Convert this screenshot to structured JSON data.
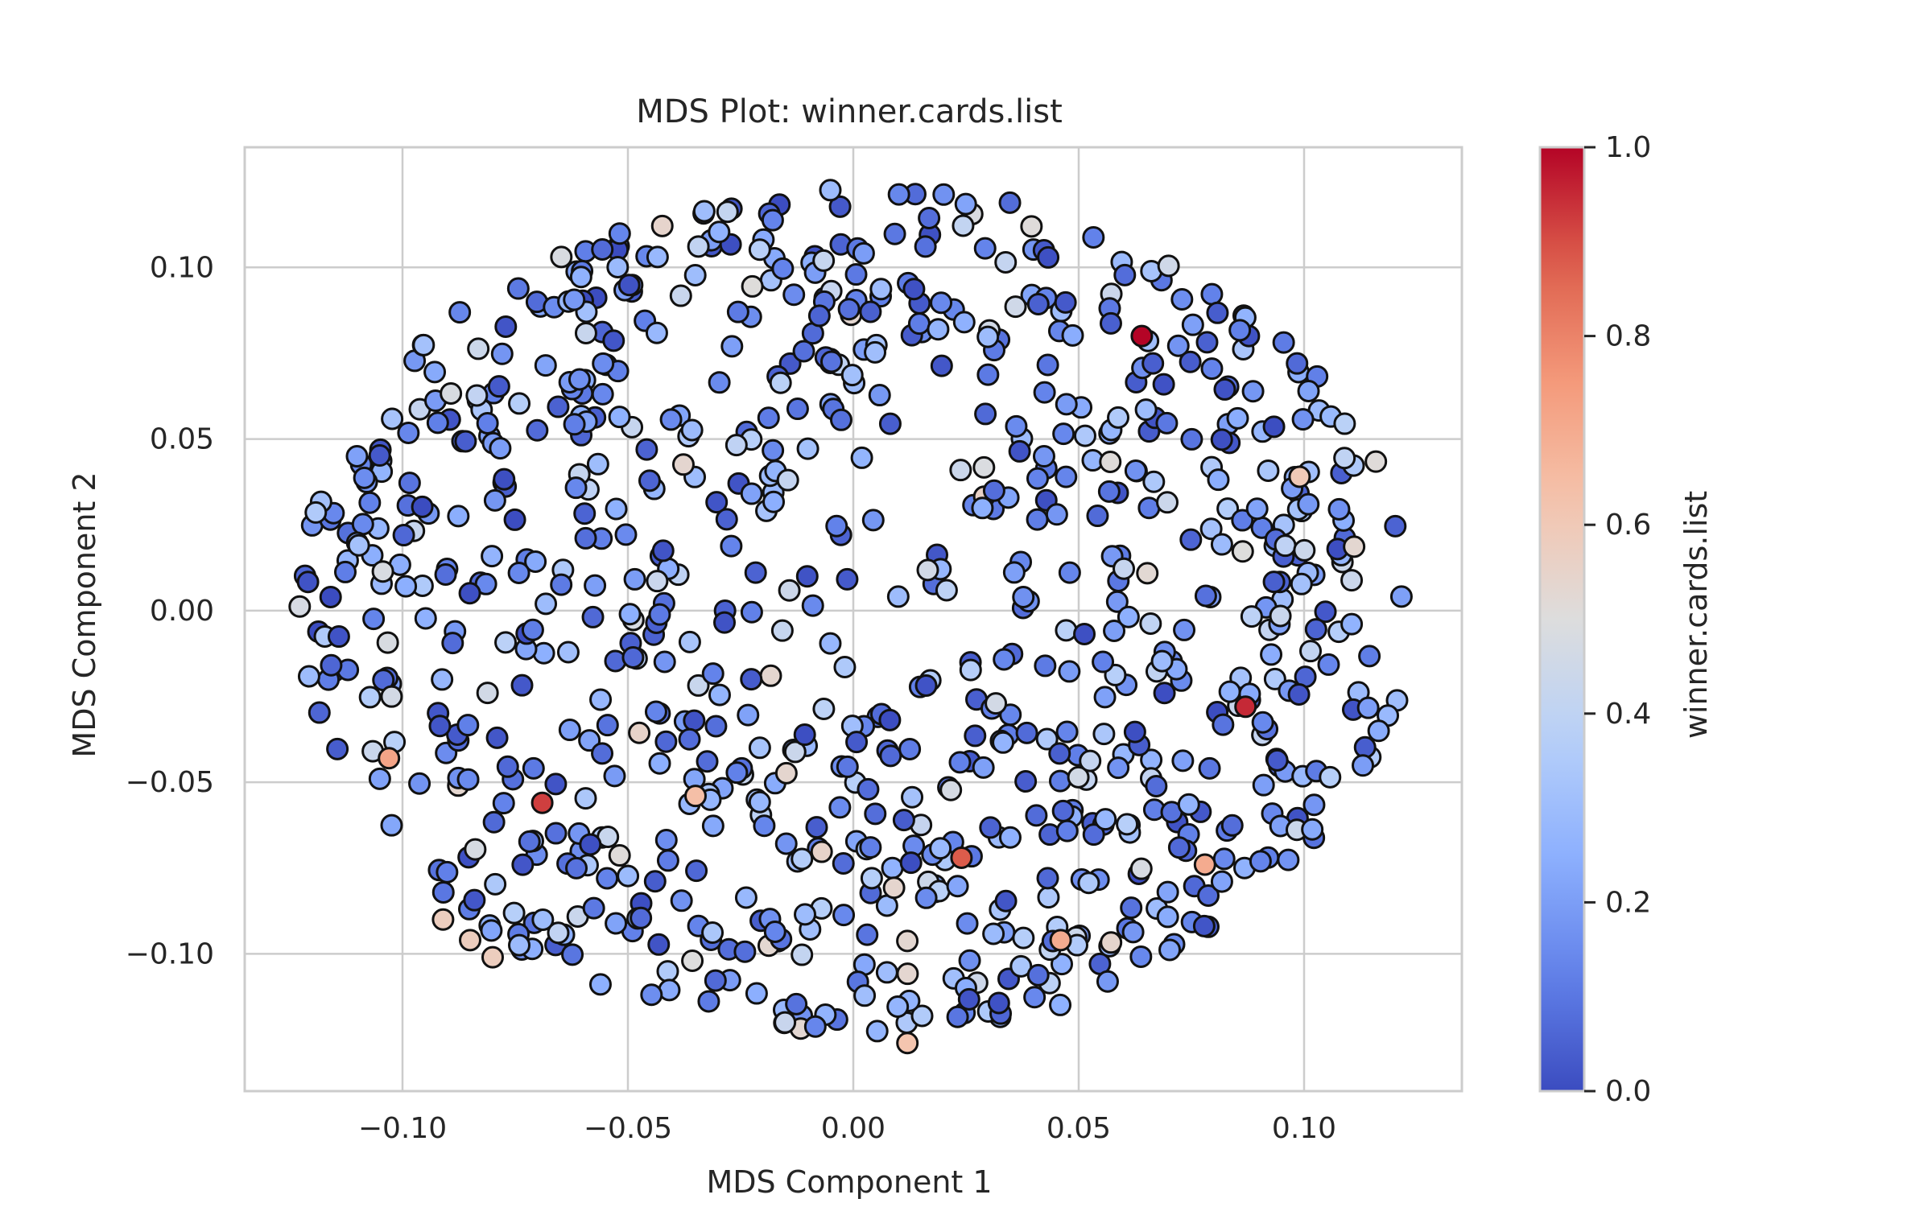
{
  "chart_data": {
    "type": "scatter",
    "title": "MDS Plot: winner.cards.list",
    "xlabel": "MDS Component 1",
    "ylabel": "MDS Component 2",
    "xlim": [
      -0.135,
      0.135
    ],
    "ylim": [
      -0.14,
      0.135
    ],
    "xticks": [
      -0.1,
      -0.05,
      0.0,
      0.05,
      0.1
    ],
    "xtick_labels": [
      "−0.10",
      "−0.05",
      "0.00",
      "0.05",
      "0.10"
    ],
    "yticks": [
      -0.1,
      -0.05,
      0.0,
      0.05,
      0.1
    ],
    "ytick_labels": [
      "−0.10",
      "−0.05",
      "0.00",
      "0.05",
      "0.10"
    ],
    "grid": true,
    "colormap": "coolwarm",
    "colorbar": {
      "label": "winner.cards.list",
      "range": [
        0.0,
        1.0
      ],
      "ticks": [
        0.0,
        0.2,
        0.4,
        0.6,
        0.8,
        1.0
      ],
      "tick_labels": [
        "0.0",
        "0.2",
        "0.4",
        "0.6",
        "0.8",
        "1.0"
      ]
    },
    "point_count": 900,
    "highlighted_points": [
      {
        "x": 0.064,
        "y": 0.08,
        "value": 1.0
      },
      {
        "x": 0.087,
        "y": -0.028,
        "value": 0.95
      },
      {
        "x": -0.069,
        "y": -0.056,
        "value": 0.92
      },
      {
        "x": 0.024,
        "y": -0.072,
        "value": 0.88
      },
      {
        "x": -0.103,
        "y": -0.043,
        "value": 0.72
      },
      {
        "x": -0.035,
        "y": -0.054,
        "value": 0.64
      },
      {
        "x": 0.046,
        "y": -0.096,
        "value": 0.7
      },
      {
        "x": 0.078,
        "y": -0.074,
        "value": 0.7
      },
      {
        "x": 0.099,
        "y": 0.039,
        "value": 0.6
      },
      {
        "x": 0.012,
        "y": -0.126,
        "value": 0.62
      },
      {
        "x": -0.091,
        "y": -0.09,
        "value": 0.58
      },
      {
        "x": -0.085,
        "y": -0.096,
        "value": 0.58
      },
      {
        "x": -0.08,
        "y": -0.101,
        "value": 0.58
      }
    ]
  }
}
